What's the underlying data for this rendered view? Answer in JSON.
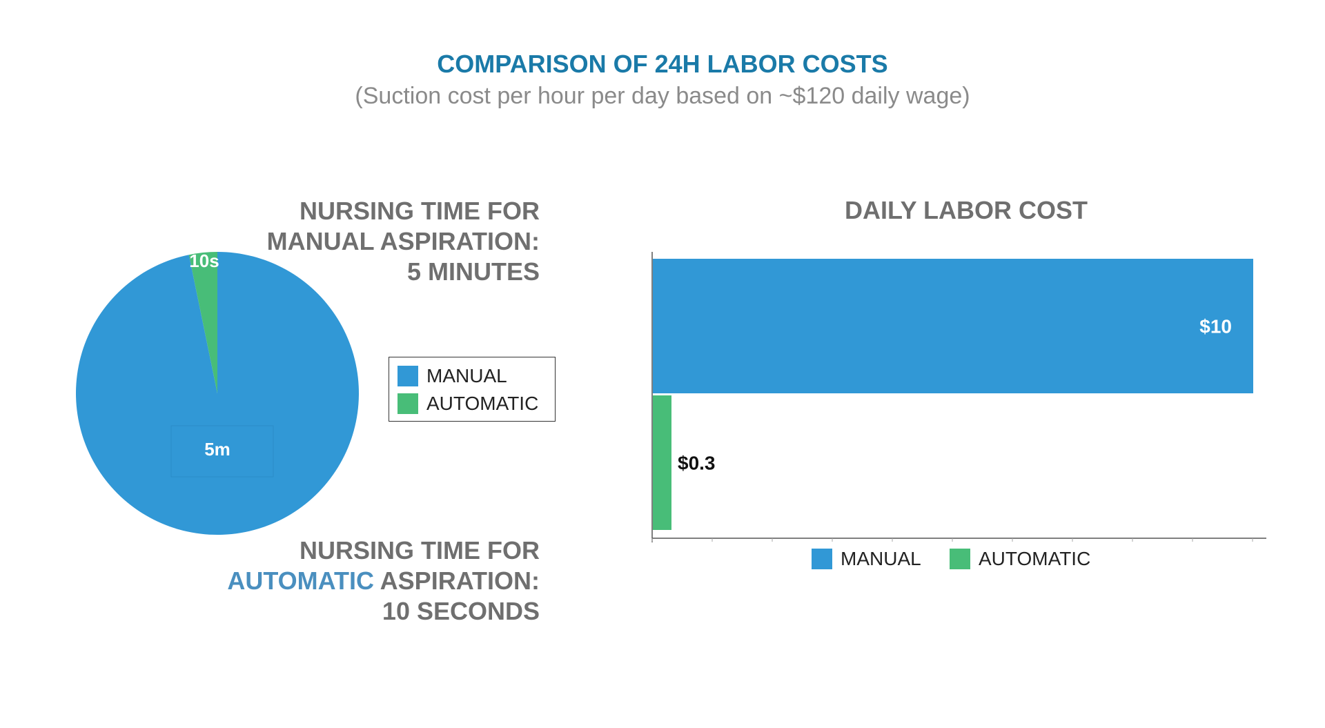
{
  "header": {
    "title": "COMPARISON OF 24H LABOR COSTS",
    "subtitle": "(Suction cost per hour per day based on ~$120 daily wage)"
  },
  "headings": {
    "manual_line1": "NURSING TIME FOR",
    "manual_line2": "MANUAL ASPIRATION:",
    "manual_line3": "5 MINUTES",
    "auto_line1": "NURSING TIME FOR",
    "auto_line2_accent": "AUTOMATIC",
    "auto_line2_rest": " ASPIRATION:",
    "auto_line3": "10 SECONDS"
  },
  "colors": {
    "manual": "#3198d6",
    "automatic": "#48bd78",
    "title": "#1a7aa8"
  },
  "chart_data": [
    {
      "type": "pie",
      "title": "",
      "slices": [
        {
          "name": "MANUAL",
          "value": 300,
          "label": "5m"
        },
        {
          "name": "AUTOMATIC",
          "value": 10,
          "label": "10s"
        }
      ],
      "legend": [
        "MANUAL",
        "AUTOMATIC"
      ],
      "legend_position": "right"
    },
    {
      "type": "bar",
      "orientation": "horizontal",
      "title": "DAILY LABOR COST",
      "categories": [
        "MANUAL",
        "AUTOMATIC"
      ],
      "values": [
        10,
        0.3
      ],
      "labels": [
        "$10",
        "$0.3"
      ],
      "xlim": [
        0,
        10
      ],
      "legend": [
        "MANUAL",
        "AUTOMATIC"
      ],
      "legend_position": "bottom"
    }
  ]
}
